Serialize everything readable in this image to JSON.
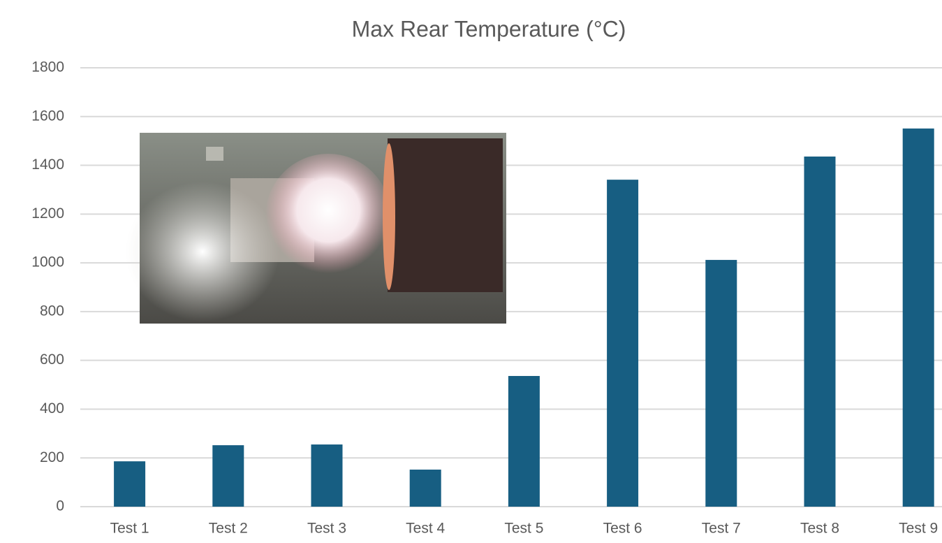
{
  "chart_data": {
    "type": "bar",
    "title": "Max Rear Temperature (°C)",
    "categories": [
      "Test 1",
      "Test 2",
      "Test 3",
      "Test 4",
      "Test 5",
      "Test 6",
      "Test 7",
      "Test 8",
      "Test 9"
    ],
    "values": [
      186,
      252,
      255,
      152,
      536,
      1341,
      1012,
      1436,
      1551
    ],
    "color": "#175e82",
    "ylim": [
      0,
      1800
    ],
    "yticks": [
      0,
      200,
      400,
      600,
      800,
      1000,
      1200,
      1400,
      1600,
      1800
    ],
    "grid": true
  }
}
